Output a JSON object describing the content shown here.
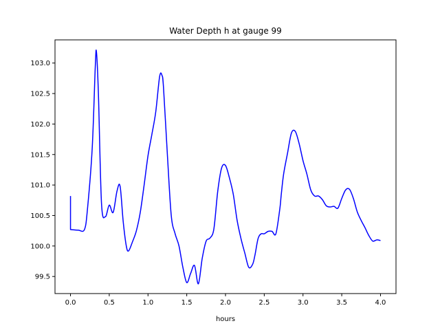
{
  "chart_data": {
    "type": "line",
    "title": "Water Depth h at gauge 99",
    "xlabel": "hours",
    "ylabel": "",
    "xlim": [
      -0.2,
      4.2
    ],
    "ylim": [
      99.22,
      103.38
    ],
    "xticks": [
      0.0,
      0.5,
      1.0,
      1.5,
      2.0,
      2.5,
      3.0,
      3.5,
      4.0
    ],
    "xtick_labels": [
      "0.0",
      "0.5",
      "1.0",
      "1.5",
      "2.0",
      "2.5",
      "3.0",
      "3.5",
      "4.0"
    ],
    "yticks": [
      99.5,
      100.0,
      100.5,
      101.0,
      101.5,
      102.0,
      102.5,
      103.0
    ],
    "ytick_labels": [
      "99.5",
      "100.0",
      "100.5",
      "101.0",
      "101.5",
      "102.0",
      "102.5",
      "103.0"
    ],
    "grid": false,
    "series": [
      {
        "color": "#0000ff",
        "x": [
          0.0,
          0.0,
          0.1,
          0.18,
          0.22,
          0.28,
          0.32,
          0.335,
          0.36,
          0.4,
          0.45,
          0.5,
          0.55,
          0.6,
          0.64,
          0.68,
          0.72,
          0.75,
          0.8,
          0.85,
          0.9,
          0.95,
          1.0,
          1.05,
          1.1,
          1.15,
          1.18,
          1.2,
          1.25,
          1.3,
          1.35,
          1.4,
          1.45,
          1.5,
          1.55,
          1.6,
          1.65,
          1.7,
          1.75,
          1.8,
          1.85,
          1.9,
          1.95,
          2.0,
          2.05,
          2.1,
          2.15,
          2.2,
          2.25,
          2.3,
          2.35,
          2.38,
          2.42,
          2.46,
          2.5,
          2.55,
          2.6,
          2.65,
          2.7,
          2.72,
          2.75,
          2.8,
          2.85,
          2.9,
          2.95,
          3.0,
          3.05,
          3.1,
          3.15,
          3.2,
          3.25,
          3.3,
          3.35,
          3.4,
          3.45,
          3.5,
          3.55,
          3.6,
          3.65,
          3.7,
          3.75,
          3.8,
          3.85,
          3.9,
          3.95,
          4.0
        ],
        "y": [
          100.82,
          100.27,
          100.26,
          100.27,
          100.62,
          101.6,
          102.95,
          103.18,
          102.5,
          100.7,
          100.48,
          100.67,
          100.55,
          100.9,
          100.98,
          100.4,
          100.0,
          99.92,
          100.07,
          100.25,
          100.55,
          101.0,
          101.48,
          101.83,
          102.2,
          102.78,
          102.8,
          102.6,
          101.5,
          100.5,
          100.2,
          100.0,
          99.65,
          99.4,
          99.55,
          99.68,
          99.38,
          99.8,
          100.08,
          100.13,
          100.28,
          100.9,
          101.28,
          101.32,
          101.12,
          100.85,
          100.42,
          100.12,
          99.88,
          99.65,
          99.7,
          99.85,
          100.12,
          100.2,
          100.2,
          100.24,
          100.24,
          100.2,
          100.6,
          100.85,
          101.18,
          101.52,
          101.85,
          101.88,
          101.68,
          101.4,
          101.18,
          100.92,
          100.82,
          100.82,
          100.76,
          100.66,
          100.64,
          100.65,
          100.62,
          100.78,
          100.92,
          100.93,
          100.78,
          100.56,
          100.42,
          100.3,
          100.17,
          100.08,
          100.1,
          100.09
        ]
      }
    ]
  }
}
